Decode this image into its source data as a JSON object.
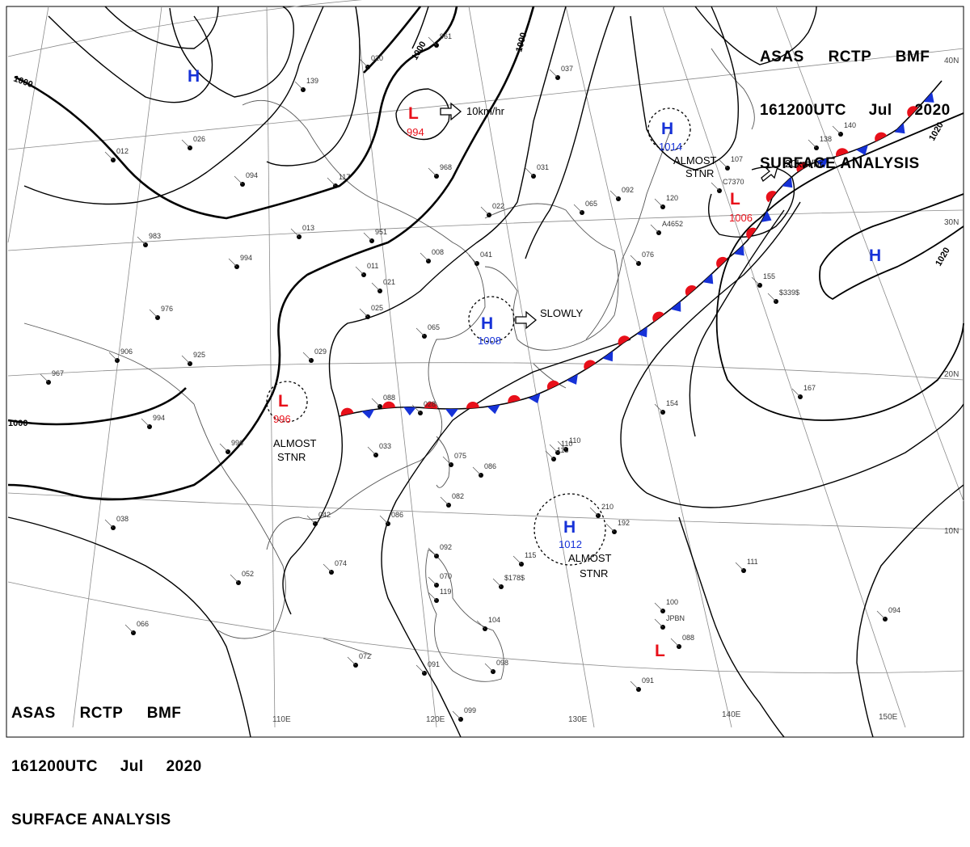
{
  "header": {
    "line1": [
      "ASAS",
      "RCTP",
      "BMF"
    ],
    "line2": [
      "161200UTC",
      "Jul",
      "2020"
    ],
    "line3": "SURFACE ANALYSIS"
  },
  "colors": {
    "low": "#e8101a",
    "high": "#1632d8",
    "warm_front": "#e8101a",
    "cold_front": "#1632d8",
    "isobar": "#000000",
    "grid": "#8a8a8a",
    "coast": "#555555"
  },
  "isobars": [
    "1000",
    "1000",
    "1000",
    "1000",
    "1020",
    "1020"
  ],
  "lat_labels": [
    "30N",
    "20N",
    "10N"
  ],
  "lon_labels": [
    "110E",
    "120E",
    "130E",
    "140E",
    "150E"
  ],
  "systems": [
    {
      "type": "H",
      "value": ""
    },
    {
      "type": "L",
      "value": "994"
    },
    {
      "type": "H",
      "value": "1014"
    },
    {
      "type": "L",
      "value": "1006"
    },
    {
      "type": "H",
      "value": "1008"
    },
    {
      "type": "L",
      "value": "996"
    },
    {
      "type": "H",
      "value": "1012"
    },
    {
      "type": "H",
      "value": ""
    },
    {
      "type": "L",
      "value": ""
    }
  ],
  "annotations": [
    "10km/hr",
    "20km/hr",
    "SLOWLY",
    "ALMOST",
    "STNR",
    "ALMOST",
    "STNR",
    "ALMOST",
    "STNR"
  ],
  "stations": [
    "961",
    "037",
    "140",
    "020",
    "139",
    "026",
    "012",
    "094",
    "117",
    "013",
    "983",
    "951",
    "994",
    "031",
    "968",
    "022",
    "065",
    "092",
    "120",
    "008",
    "041",
    "011",
    "021",
    "076",
    "025",
    "065",
    "976",
    "906",
    "925",
    "029",
    "967",
    "994",
    "996",
    "033",
    "075",
    "086",
    "082",
    "110",
    "118",
    "088",
    "028",
    "042",
    "038",
    "074",
    "052",
    "086",
    "092",
    "070",
    "119",
    "104",
    "098",
    "091",
    "099",
    "072",
    "066",
    "115",
    "210",
    "192",
    "111",
    "100",
    "088",
    "094",
    "091",
    "155",
    "167",
    "154",
    "110",
    "138",
    "107",
    "C7370",
    "A4652",
    "$178$",
    "$339$",
    "JPBN"
  ],
  "map_meta": {
    "front": "stationary front"
  }
}
